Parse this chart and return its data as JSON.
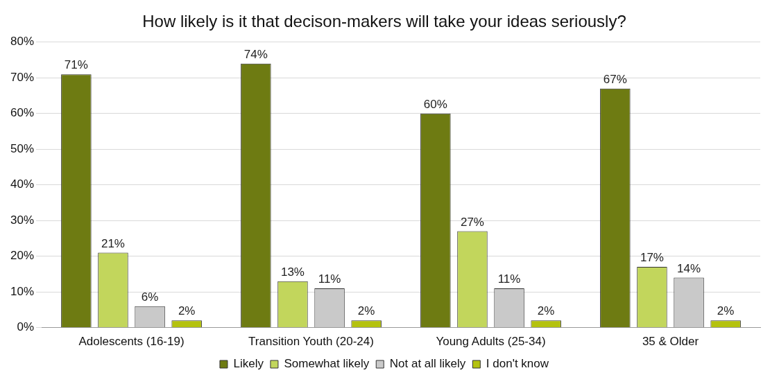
{
  "chart_data": {
    "type": "bar",
    "title": "How likely is it that decison-makers will take your ideas seriously?",
    "categories": [
      "Adolescents (16-19)",
      "Transition Youth (20-24)",
      "Young Adults (25-34)",
      "35 & Older"
    ],
    "series": [
      {
        "name": "Likely",
        "color": "#6e7b12",
        "values": [
          71,
          74,
          60,
          67
        ],
        "value_labels": [
          "71%",
          "74%",
          "60%",
          "67%"
        ]
      },
      {
        "name": "Somewhat likely",
        "color": "#c2d65c",
        "values": [
          21,
          13,
          27,
          17
        ],
        "value_labels": [
          "21%",
          "13%",
          "27%",
          "17%"
        ]
      },
      {
        "name": "Not at all likely",
        "color": "#c9c9c9",
        "values": [
          6,
          11,
          11,
          14
        ],
        "value_labels": [
          "6%",
          "11%",
          "11%",
          "14%"
        ]
      },
      {
        "name": "I don't know",
        "color": "#b4c20e",
        "values": [
          2,
          2,
          2,
          2
        ],
        "value_labels": [
          "2%",
          "2%",
          "2%",
          "2%"
        ]
      }
    ],
    "ylim": [
      0,
      80
    ],
    "yticks": [
      {
        "value": 0,
        "label": "0%"
      },
      {
        "value": 10,
        "label": "10%"
      },
      {
        "value": 20,
        "label": "20%"
      },
      {
        "value": 30,
        "label": "30%"
      },
      {
        "value": 40,
        "label": "40%"
      },
      {
        "value": 50,
        "label": "50%"
      },
      {
        "value": 60,
        "label": "60%"
      },
      {
        "value": 70,
        "label": "70%"
      },
      {
        "value": 80,
        "label": "80%"
      }
    ],
    "grid": "y",
    "legend": "bottom"
  }
}
